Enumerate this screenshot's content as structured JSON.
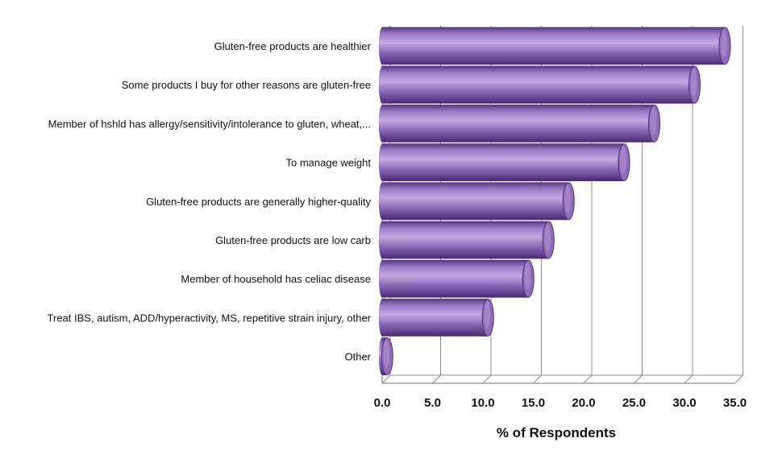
{
  "chart_data": {
    "type": "bar",
    "orientation": "horizontal",
    "style": "3d-cylinder",
    "categories": [
      "Gluten-free products are healthier",
      "Some products I buy for other reasons are gluten-free",
      "Member of hshld has allergy/sensitivity/intolerance to gluten, wheat,...",
      "To manage weight",
      "Gluten-free products are generally higher-quality",
      "Gluten-free products are low carb",
      "Member of household has celiac disease",
      "Treat IBS, autism, ADD/hyperactivity, MS, repetitive strain injury, other",
      "Other"
    ],
    "values": [
      34.0,
      31.0,
      27.0,
      24.0,
      18.5,
      16.5,
      14.5,
      10.5,
      0.5
    ],
    "xlabel": "% of Respondents",
    "ylabel": "",
    "xlim": [
      0,
      35
    ],
    "ticks": [
      "0.0",
      "5.0",
      "10.0",
      "15.0",
      "20.0",
      "25.0",
      "30.0",
      "35.0"
    ],
    "grid": true,
    "legend": "none",
    "bar_color": "#8e6cb7",
    "bar_dark": "#4f2f7a",
    "bar_light": "#c6aee3"
  }
}
